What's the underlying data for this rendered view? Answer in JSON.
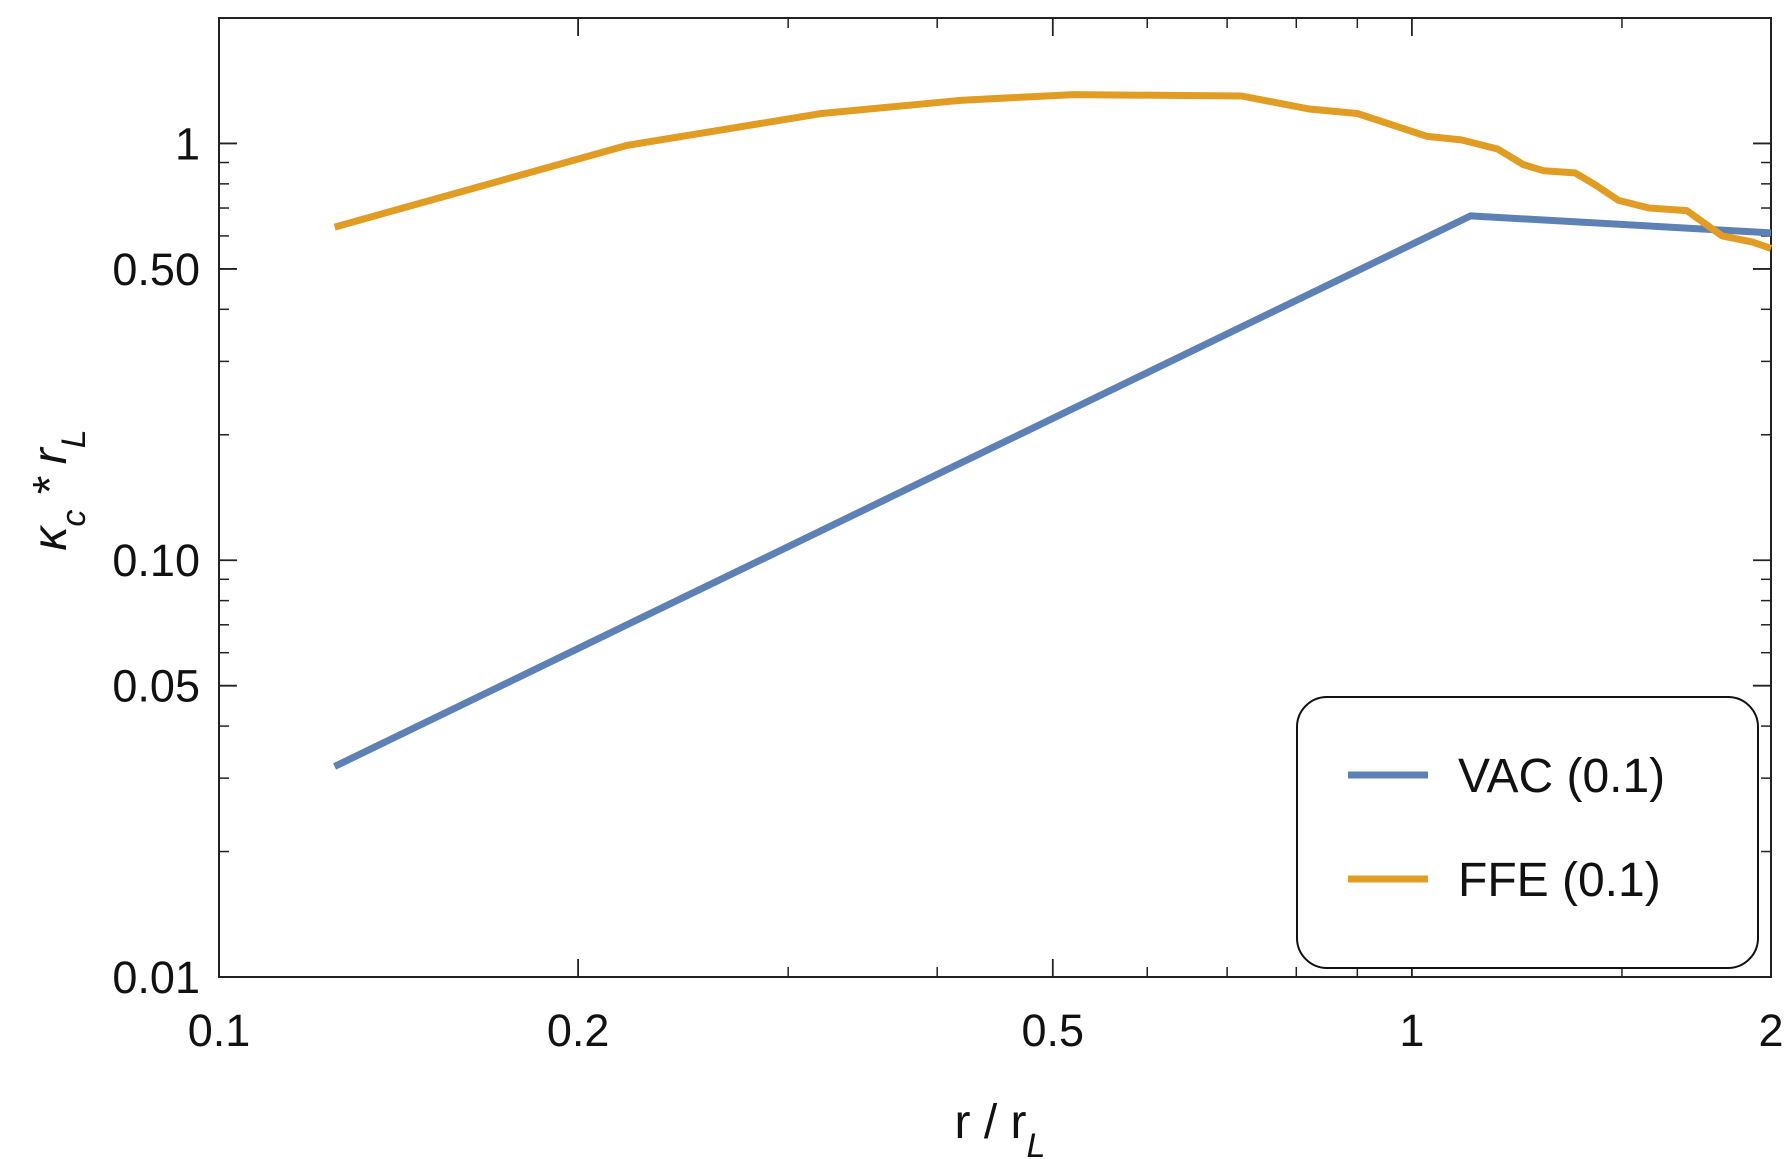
{
  "chart_data": {
    "type": "line",
    "x_scale": "log",
    "y_scale": "log",
    "xlim": [
      0.1,
      2
    ],
    "ylim": [
      0.01,
      2
    ],
    "xlabel": "r / r_L",
    "ylabel": "κ_c * r_L",
    "title": "",
    "grid": false,
    "legend_position": "bottom-right",
    "x_ticks": [
      {
        "value": 0.1,
        "label": "0.1"
      },
      {
        "value": 0.2,
        "label": "0.2"
      },
      {
        "value": 0.5,
        "label": "0.5"
      },
      {
        "value": 1,
        "label": "1"
      },
      {
        "value": 2,
        "label": "2"
      }
    ],
    "y_ticks": [
      {
        "value": 0.01,
        "label": "0.01"
      },
      {
        "value": 0.05,
        "label": "0.05"
      },
      {
        "value": 0.1,
        "label": "0.10"
      },
      {
        "value": 0.5,
        "label": "0.50"
      },
      {
        "value": 1,
        "label": "1"
      }
    ],
    "series": [
      {
        "name": "VAC (0.1)",
        "color": "#5e81b5",
        "x": [
          0.125,
          1.12,
          2.0
        ],
        "y": [
          0.032,
          0.67,
          0.61
        ]
      },
      {
        "name": "FFE (0.1)",
        "color": "#e19c24",
        "x": [
          0.125,
          0.22,
          0.32,
          0.42,
          0.52,
          0.72,
          0.82,
          0.9,
          1.03,
          1.1,
          1.18,
          1.24,
          1.29,
          1.37,
          1.42,
          1.49,
          1.58,
          1.7,
          1.82,
          1.93,
          2.0
        ],
        "y": [
          0.63,
          0.99,
          1.18,
          1.27,
          1.31,
          1.3,
          1.21,
          1.18,
          1.04,
          1.02,
          0.97,
          0.89,
          0.86,
          0.85,
          0.8,
          0.73,
          0.7,
          0.69,
          0.6,
          0.58,
          0.56
        ]
      }
    ]
  }
}
